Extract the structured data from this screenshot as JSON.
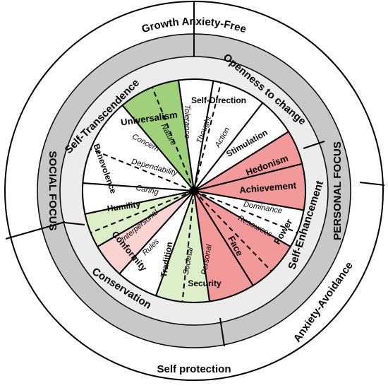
{
  "outer_ring": {
    "top": "Growth Anxiety-Free",
    "bottom_left": "Self protection",
    "bottom_right": "Anxiety-Avoidance"
  },
  "middle_ring": {
    "left": "SOCIAL FOCUS",
    "right": "PERSONAL FOCUS"
  },
  "inner_ring": {
    "top_left": "Self-Transcendence",
    "top_right": "Openness to change",
    "right": "Self-Enhancement",
    "bottom_left": "Conservation"
  },
  "values": {
    "universalism": "Universalism",
    "concern": "Concern",
    "nature": "Nature",
    "tolerance": "Tolerance",
    "self_direction": "Self-Direction",
    "thought": "Thought",
    "action": "Action",
    "stimulation": "Stimulation",
    "hedonism": "Hedonism",
    "achievement": "Achievement",
    "dominance": "Dominance",
    "resources": "Resources",
    "power": "Power",
    "face": "Face",
    "security": "Security",
    "societal": "Societal",
    "personal": "Personal",
    "tradition": "Tradition",
    "conformity": "Conformity",
    "interpersonal": "Interpersonal",
    "rules": "Rules",
    "humility": "Humility",
    "benevolence": "Benevolence",
    "dependability": "Dependability",
    "caring": "Caring"
  },
  "colors": {
    "green_dark": "#9fd07a",
    "green_light": "#dcefc8",
    "red_dark": "#f29a9a",
    "red_light": "#fad2d2",
    "ring_grey": "#c8c8c8",
    "ring_light": "#ececec"
  }
}
